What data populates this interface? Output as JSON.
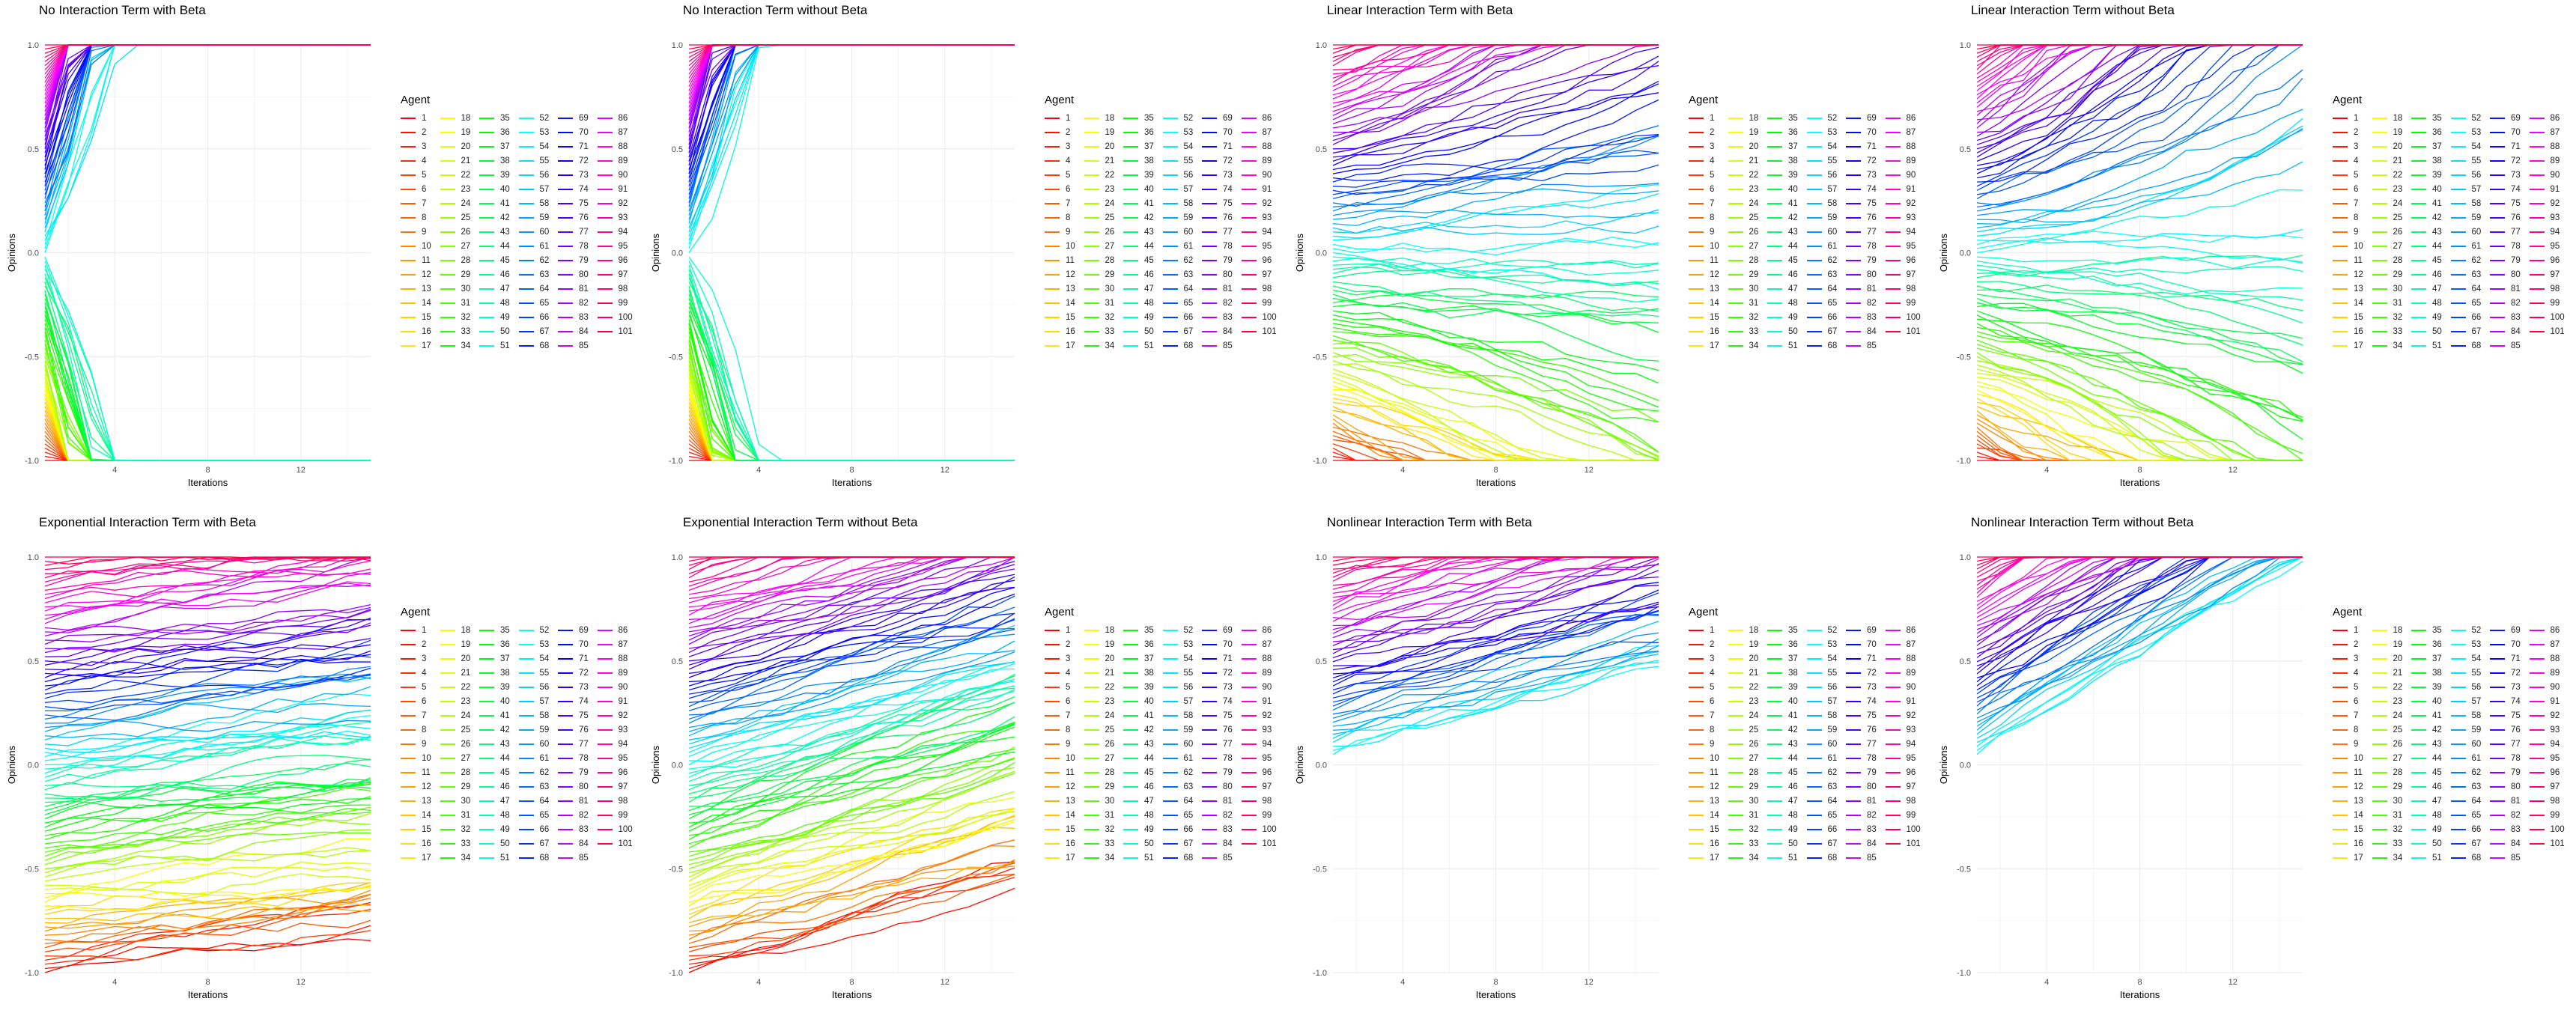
{
  "legend_title": "Agent",
  "agents": [
    "1",
    "2",
    "3",
    "4",
    "5",
    "6",
    "7",
    "8",
    "9",
    "10",
    "11",
    "12",
    "13",
    "14",
    "15",
    "16",
    "17",
    "18",
    "19",
    "20",
    "21",
    "22",
    "23",
    "24",
    "25",
    "26",
    "27",
    "28",
    "29",
    "30",
    "31",
    "32",
    "33",
    "34",
    "35",
    "36",
    "37",
    "38",
    "39",
    "40",
    "41",
    "42",
    "43",
    "44",
    "45",
    "46",
    "47",
    "48",
    "49",
    "50",
    "51",
    "52",
    "53",
    "54",
    "55",
    "56",
    "57",
    "58",
    "59",
    "60",
    "61",
    "62",
    "63",
    "64",
    "65",
    "66",
    "67",
    "68",
    "69",
    "70",
    "71",
    "72",
    "73",
    "74",
    "75",
    "76",
    "77",
    "78",
    "79",
    "80",
    "81",
    "82",
    "83",
    "84",
    "85",
    "86",
    "87",
    "88",
    "89",
    "90",
    "91",
    "92",
    "93",
    "94",
    "95",
    "96",
    "97",
    "98",
    "99",
    "100",
    "101"
  ],
  "agent_colors": {
    "hue_start_deg": 0,
    "hue_end_deg": 345,
    "saturation": 100,
    "lightness": 50
  },
  "chart_data": [
    {
      "type": "line",
      "title": "No Interaction Term with Beta",
      "xlabel": "Iterations",
      "ylabel": "Opinions",
      "xlim": [
        1,
        15
      ],
      "ylim": [
        -1,
        1
      ],
      "x_ticks": [
        4,
        8,
        12
      ],
      "y_ticks": [
        "-1.0",
        "-0.5",
        "0.0",
        "0.5",
        "1.0"
      ],
      "model": "none",
      "initial_opinions": "agent i starts at -1 + 2*(i-1)/100",
      "positive_rate": 1.0,
      "negative_rate": 1.0,
      "noise": 0.0,
      "grid": true,
      "legend_position": "right"
    },
    {
      "type": "line",
      "title": "No Interaction Term without Beta",
      "xlabel": "Iterations",
      "ylabel": "Opinions",
      "xlim": [
        1,
        15
      ],
      "ylim": [
        -1,
        1
      ],
      "x_ticks": [
        4,
        8,
        12
      ],
      "y_ticks": [
        "-1.0",
        "-0.5",
        "0.0",
        "0.5",
        "1.0"
      ],
      "model": "none",
      "initial_opinions": "agent i starts at -1 + 2*(i-1)/100",
      "positive_rate": 1.0,
      "negative_rate": 1.0,
      "noise": 0.0,
      "grid": true,
      "legend_position": "right"
    },
    {
      "type": "line",
      "title": "Linear Interaction Term with Beta",
      "xlabel": "Iterations",
      "ylabel": "Opinions",
      "xlim": [
        1,
        15
      ],
      "ylim": [
        -1,
        1
      ],
      "x_ticks": [
        4,
        8,
        12
      ],
      "y_ticks": [
        "-1.0",
        "-0.5",
        "0.0",
        "0.5",
        "1.0"
      ],
      "model": "linear",
      "initial_opinions": "agent i starts at -1 + 2*(i-1)/100",
      "positive_rate": 0.15,
      "negative_rate": 0.15,
      "noise": 0.03,
      "grid": true,
      "legend_position": "right"
    },
    {
      "type": "line",
      "title": "Linear Interaction Term without Beta",
      "xlabel": "Iterations",
      "ylabel": "Opinions",
      "xlim": [
        1,
        15
      ],
      "ylim": [
        -1,
        1
      ],
      "x_ticks": [
        4,
        8,
        12
      ],
      "y_ticks": [
        "-1.0",
        "-0.5",
        "0.0",
        "0.5",
        "1.0"
      ],
      "model": "linear",
      "initial_opinions": "agent i starts at -1 + 2*(i-1)/100",
      "positive_rate": 0.3,
      "negative_rate": 0.2,
      "noise": 0.03,
      "grid": true,
      "legend_position": "right"
    },
    {
      "type": "line",
      "title": "Exponential Interaction Term with Beta",
      "xlabel": "Iterations",
      "ylabel": "Opinions",
      "xlim": [
        1,
        15
      ],
      "ylim": [
        -1,
        1
      ],
      "x_ticks": [
        4,
        8,
        12
      ],
      "y_ticks": [
        "-1.0",
        "-0.5",
        "0.0",
        "0.5",
        "1.0"
      ],
      "model": "drift",
      "initial_opinions": "agent i starts at -1 + 2*(i-1)/100",
      "drift": 0.013,
      "noise": 0.03,
      "grid": true,
      "legend_position": "right"
    },
    {
      "type": "line",
      "title": "Exponential Interaction Term without Beta",
      "xlabel": "Iterations",
      "ylabel": "Opinions",
      "xlim": [
        1,
        15
      ],
      "ylim": [
        -1,
        1
      ],
      "x_ticks": [
        4,
        8,
        12
      ],
      "y_ticks": [
        "-1.0",
        "-0.5",
        "0.0",
        "0.5",
        "1.0"
      ],
      "model": "drift",
      "initial_opinions": "agent i starts at -1 + 2*(i-1)/100",
      "drift": 0.032,
      "noise": 0.03,
      "grid": true,
      "legend_position": "right"
    },
    {
      "type": "line",
      "title": "Nonlinear Interaction Term with Beta",
      "xlabel": "Iterations",
      "ylabel": "Opinions",
      "xlim": [
        1,
        15
      ],
      "ylim": [
        -1,
        1
      ],
      "x_ticks": [
        4,
        8,
        12
      ],
      "y_ticks": [
        "-1.0",
        "-0.5",
        "0.0",
        "0.5",
        "1.0"
      ],
      "model": "upper",
      "initial_opinions": "agents 52-101 start between 0.05 and 1.0",
      "drift": 0.028,
      "noise": 0.03,
      "grid": true,
      "legend_position": "right"
    },
    {
      "type": "line",
      "title": "Nonlinear Interaction Term without Beta",
      "xlabel": "Iterations",
      "ylabel": "Opinions",
      "xlim": [
        1,
        15
      ],
      "ylim": [
        -1,
        1
      ],
      "x_ticks": [
        4,
        8,
        12
      ],
      "y_ticks": [
        "-1.0",
        "-0.5",
        "0.0",
        "0.5",
        "1.0"
      ],
      "model": "upper",
      "initial_opinions": "agents 52-101 start between 0.05 and 1.0",
      "drift": 0.065,
      "noise": 0.02,
      "grid": true,
      "legend_position": "right"
    }
  ]
}
